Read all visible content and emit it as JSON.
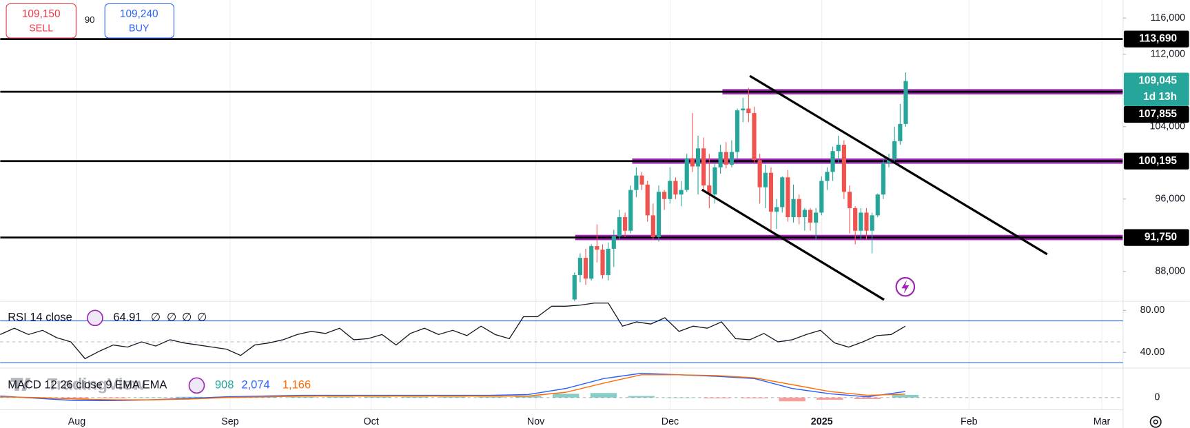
{
  "header": {
    "sell_price": "109,150",
    "sell_label": "SELL",
    "spread": "90",
    "buy_price": "109,240",
    "buy_label": "BUY"
  },
  "watermark": "TradingView",
  "chart_data": [
    {
      "type": "candlestick",
      "open": [
        84900,
        87600,
        89500,
        87200,
        90800,
        90400,
        87600,
        90500,
        91900,
        94000,
        92500,
        97000,
        98600,
        97600,
        94200,
        91800,
        96800,
        96000,
        98000,
        96500,
        97000,
        100500,
        99600,
        101600,
        97500,
        96500,
        99500,
        101200,
        99800,
        101200,
        105800,
        106000,
        105500,
        100300,
        97300,
        98900,
        94600,
        95100,
        98400,
        94000,
        96000,
        94000,
        94800,
        93400,
        94500,
        98000,
        99000,
        101300,
        102000,
        96800,
        95000,
        92500,
        94500,
        92500,
        94200,
        96500,
        100000,
        100400,
        102400,
        104300
      ],
      "high": [
        87900,
        90000,
        90500,
        91000,
        93200,
        91000,
        91200,
        92600,
        94800,
        94500,
        97500,
        99500,
        99000,
        98000,
        95500,
        97500,
        97000,
        99500,
        98400,
        98000,
        101000,
        105500,
        103000,
        102800,
        101000,
        100000,
        102000,
        102300,
        102500,
        106000,
        107200,
        108300,
        106200,
        101000,
        99800,
        99500,
        96000,
        98500,
        99200,
        97600,
        96500,
        95000,
        95000,
        95000,
        98500,
        99500,
        101800,
        103000,
        102500,
        97500,
        95200,
        95000,
        95000,
        94500,
        96600,
        100500,
        101000,
        104000,
        106500,
        110000
      ],
      "low": [
        84500,
        86800,
        86500,
        87000,
        89000,
        87200,
        87000,
        88500,
        91500,
        91800,
        92200,
        96200,
        97000,
        93500,
        91500,
        91300,
        94800,
        95500,
        96000,
        95200,
        96800,
        99000,
        96500,
        97000,
        95000,
        95500,
        98800,
        99400,
        99500,
        100500,
        104500,
        104500,
        100000,
        95500,
        95000,
        92500,
        92700,
        94500,
        93500,
        93400,
        93200,
        92500,
        92500,
        91500,
        94200,
        97000,
        98000,
        100000,
        96000,
        92200,
        91000,
        91500,
        91500,
        90000,
        94000,
        96000,
        99500,
        99900,
        102000,
        104000
      ],
      "close": [
        87600,
        89500,
        87200,
        90800,
        90400,
        87600,
        90500,
        91900,
        94000,
        92500,
        97000,
        98600,
        97600,
        94200,
        91800,
        96800,
        96000,
        98000,
        96500,
        97000,
        100500,
        99600,
        101600,
        97500,
        96500,
        99500,
        101200,
        99800,
        101200,
        105800,
        106000,
        105500,
        100300,
        97300,
        98900,
        94600,
        95100,
        98400,
        94000,
        96000,
        94000,
        94800,
        93400,
        94500,
        98000,
        99000,
        101300,
        102000,
        96800,
        95000,
        92500,
        94500,
        92500,
        94200,
        96500,
        100000,
        100400,
        102400,
        104300,
        109045
      ],
      "up_color": "#26a69a",
      "down_color": "#ef5350",
      "ylim": [
        84700,
        118000
      ],
      "yticks": [
        {
          "value": 88000,
          "label": "88,000"
        },
        {
          "value": 96000,
          "label": "96,000"
        },
        {
          "value": 104000,
          "label": "104,000"
        },
        {
          "value": 112000,
          "label": "112,000"
        },
        {
          "value": 116000,
          "label": "116,000"
        }
      ],
      "x_labels": [
        "Aug",
        "Sep",
        "Oct",
        "Nov",
        "Dec",
        "2025",
        "Feb",
        "Mar"
      ],
      "levels": [
        {
          "value": 113690,
          "label": "113,690"
        },
        {
          "value": 107855,
          "label": "107,855"
        },
        {
          "value": 100195,
          "label": "100,195"
        },
        {
          "value": 91750,
          "label": "91,750"
        }
      ],
      "level_color": "#000000",
      "zone_color": "#9c27b0",
      "last_price": {
        "value": 109045,
        "label": "109,045"
      },
      "countdown": "1d 13h"
    },
    {
      "type": "line",
      "title": "RSI 14 close",
      "value": 64.91,
      "placeholders": [
        "∅",
        "∅",
        "∅",
        "∅"
      ],
      "values": [
        57,
        63,
        57,
        61,
        54,
        50,
        34,
        41,
        47,
        45,
        50,
        46,
        52,
        49,
        47,
        45,
        43,
        37,
        47,
        49,
        52,
        57,
        60,
        58,
        63,
        52,
        53,
        57,
        47,
        58,
        63,
        57,
        61,
        56,
        65,
        57,
        53,
        74,
        74,
        84,
        84,
        85,
        87,
        87,
        65,
        69,
        67,
        73,
        60,
        65,
        63,
        69,
        53,
        52,
        58,
        50,
        52,
        57,
        61,
        49,
        45,
        50,
        56,
        57,
        64.91
      ],
      "color": "#131722",
      "band_color": "#2962ff",
      "ylim": [
        25,
        88
      ],
      "yticks": [
        {
          "value": 80,
          "label": "80.00"
        },
        {
          "value": 40,
          "label": "40.00"
        }
      ],
      "bands": [
        70,
        50,
        30
      ]
    },
    {
      "type": "macd",
      "title": "MACD 12 26 close 9 EMA EMA",
      "series": [
        {
          "color": "#26a69a",
          "down_color": "#ef5350",
          "legend_label": "908",
          "values": [
            260,
            -260,
            -520,
            -260,
            0,
            260,
            260,
            260,
            260,
            260,
            260,
            260,
            260,
            260,
            520,
            1300,
            1560,
            520,
            0,
            -260,
            -260,
            -1300,
            -780,
            -520,
            908
          ]
        },
        {
          "color": "#2962ff",
          "legend_label": "2,074",
          "values": [
            520,
            -260,
            -1040,
            -1040,
            -780,
            -260,
            260,
            520,
            780,
            780,
            780,
            780,
            780,
            780,
            1040,
            3120,
            6500,
            8320,
            7800,
            7280,
            6500,
            3120,
            1300,
            260,
            2074
          ]
        },
        {
          "color": "#ff6d00",
          "legend_label": "1,166",
          "values": [
            260,
            0,
            -520,
            -780,
            -780,
            -520,
            0,
            260,
            520,
            520,
            520,
            520,
            520,
            520,
            520,
            1820,
            4940,
            7800,
            7800,
            7540,
            6760,
            4420,
            2080,
            780,
            1166
          ]
        }
      ],
      "ylim": [
        -4200,
        9600
      ],
      "yticks": [
        0
      ]
    }
  ]
}
